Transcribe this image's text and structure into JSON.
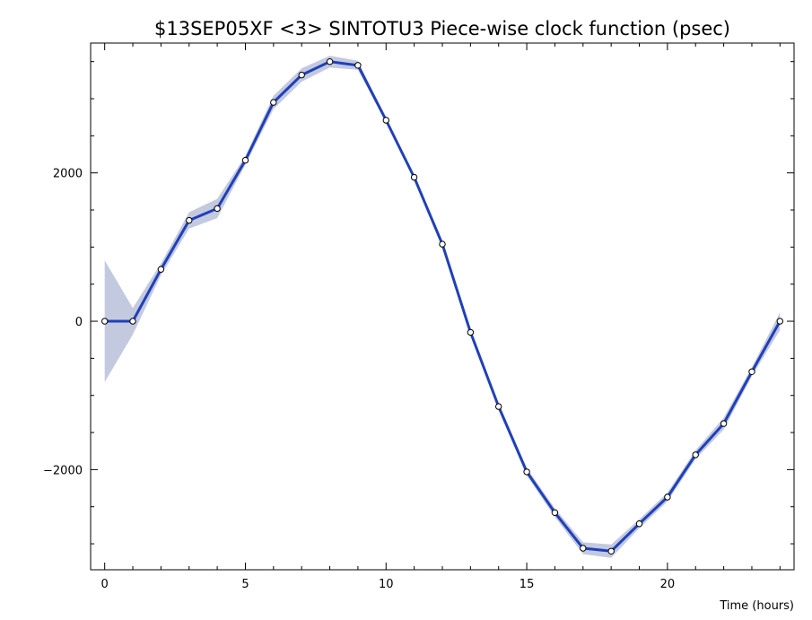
{
  "chart_data": {
    "type": "line",
    "title": "$13SEP05XF <3>  SINTOTU3  Piece-wise clock function (psec)",
    "xlabel": "Time (hours)",
    "ylabel": "",
    "xlim": [
      -0.5,
      24.5
    ],
    "ylim": [
      -3350,
      3750
    ],
    "x_ticks": [
      0,
      5,
      10,
      15,
      20
    ],
    "x_tick_labels": [
      "0",
      "5",
      "10",
      "15",
      "20"
    ],
    "y_ticks": [
      -2000,
      0,
      2000
    ],
    "y_tick_labels": [
      "−2000",
      "0",
      "2000"
    ],
    "grid": false,
    "legend": "none",
    "colors": {
      "line": "#2040b8",
      "band": "#c3c9df",
      "marker_fill": "#ffffff",
      "marker_edge": "#000000",
      "frame": "#000000"
    },
    "series": [
      {
        "x": [
          0,
          1,
          2,
          3,
          4,
          5,
          6,
          7,
          8,
          9,
          10,
          11,
          12,
          13,
          14,
          15,
          16,
          17,
          18,
          19,
          20,
          21,
          22,
          23,
          24
        ],
        "y": [
          0,
          0,
          700,
          1360,
          1520,
          2170,
          2950,
          3320,
          3500,
          3450,
          2710,
          1940,
          1040,
          -150,
          -1150,
          -2030,
          -2580,
          -3060,
          -3100,
          -2730,
          -2370,
          -1800,
          -1380,
          -680,
          0
        ],
        "uncertainty": [
          820,
          180,
          80,
          110,
          130,
          60,
          90,
          90,
          80,
          60,
          30,
          30,
          40,
          30,
          40,
          50,
          60,
          80,
          90,
          60,
          60,
          60,
          80,
          60,
          120
        ]
      }
    ]
  }
}
